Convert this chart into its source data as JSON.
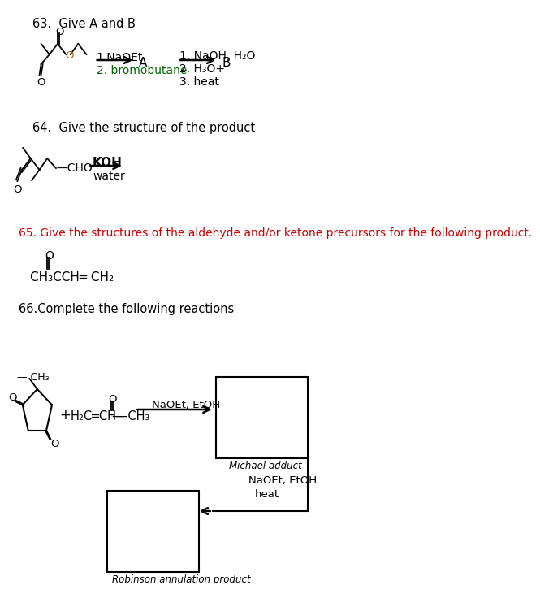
{
  "bg_color": "#ffffff",
  "q63_label": "63.  Give A and B",
  "q64_label": "64.  Give the structure of the product",
  "q65_label": "65. Give the structures of the aldehyde and/or ketone precursors for the following product.",
  "q66_label": "66.Complete the following reactions",
  "q63_step1": "1.NaOEt",
  "q63_step2": "2. bromobutane",
  "q63_A": "A",
  "q63_right1": "1. NaOH, H₂O",
  "q63_right2": "2. H₃O+",
  "q63_right3": "3. heat",
  "q63_B": "B",
  "q64_KOH": "KOH",
  "q64_water": "water",
  "q66_michael": "Michael adduct",
  "q66_naOEt1": "NaOEt, EtOH",
  "q66_naOEt2": "NaOEt, EtOH",
  "q66_heat": "heat",
  "q66_robinson": "Robinson annulation product"
}
